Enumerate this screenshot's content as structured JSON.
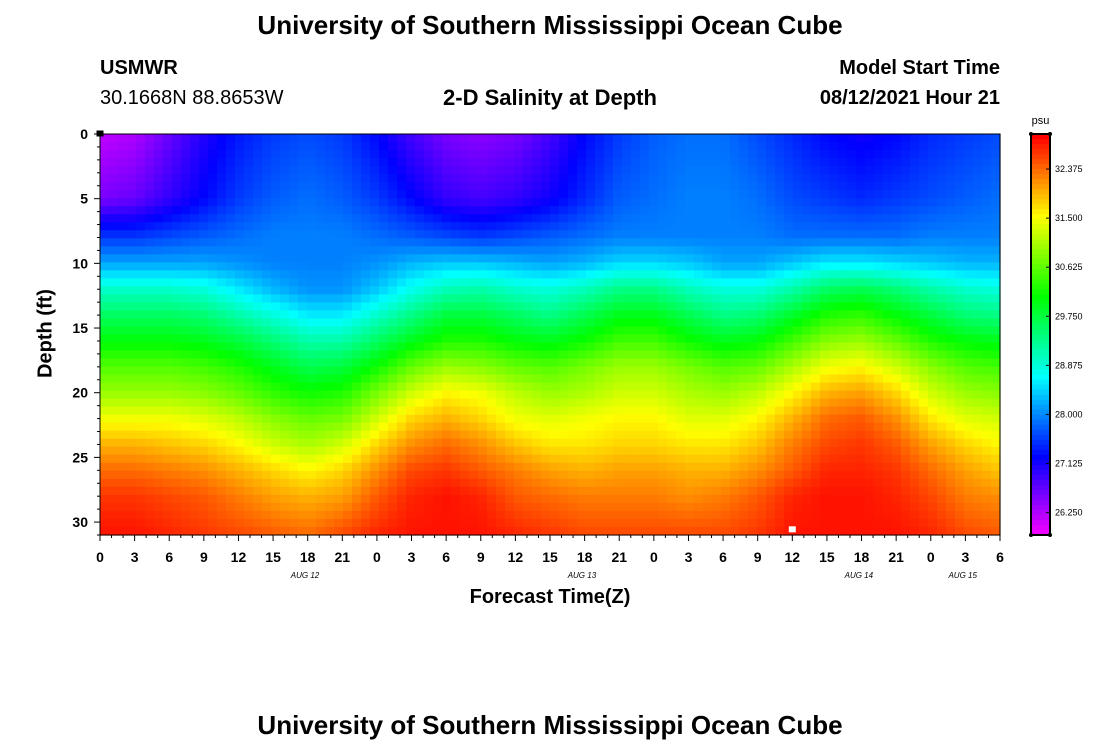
{
  "header": {
    "title_top": "University of Southern Mississippi Ocean Cube",
    "station": "USMWR",
    "coordinates": "30.1668N  88.8653W",
    "chart_title": "2-D Salinity at Depth",
    "model_start_label": "Model Start Time",
    "model_start_value": "08/12/2021 Hour 21"
  },
  "footer": {
    "title_bottom": "University of Southern Mississippi Ocean Cube"
  },
  "colors": {
    "background": "#ffffff",
    "scale": [
      "#ff00ff",
      "#8000ff",
      "#0000ff",
      "#0080ff",
      "#00ffff",
      "#00ff00",
      "#ffff00",
      "#ff8000",
      "#ff0000"
    ]
  },
  "chart_data": {
    "type": "heatmap",
    "title": "2-D Salinity at Depth",
    "xlabel": "Forecast Time(Z)",
    "ylabel": "Depth (ft)",
    "x_tick_labels": [
      "0",
      "3",
      "6",
      "9",
      "12",
      "15",
      "18",
      "21",
      "0",
      "3",
      "6",
      "9",
      "12",
      "15",
      "18",
      "21",
      "0",
      "3",
      "6",
      "9",
      "12",
      "15",
      "18",
      "21",
      "0",
      "3",
      "6"
    ],
    "x_date_labels": [
      "AUG 12",
      "AUG 13",
      "AUG 14",
      "AUG 15"
    ],
    "y_tick_labels": [
      "0",
      "5",
      "10",
      "15",
      "20",
      "25",
      "30"
    ],
    "xlim_hours": [
      0,
      78
    ],
    "ylim_ft": [
      0,
      31
    ],
    "y_inverted": true,
    "colorbar": {
      "unit": "psu",
      "range": [
        25.85,
        33.0
      ],
      "tick_labels": [
        "32.375",
        "31.500",
        "30.625",
        "29.750",
        "28.875",
        "28.000",
        "27.125",
        "26.250"
      ]
    },
    "salinity_psu": {
      "depth_ft": [
        0,
        5,
        8,
        10,
        12,
        14,
        16,
        18,
        20,
        22,
        24,
        26,
        28,
        31
      ],
      "hours": [
        0,
        3,
        6,
        9,
        12,
        15,
        18,
        21,
        24,
        27,
        30,
        33,
        36,
        39,
        42,
        45,
        48,
        51,
        54,
        57,
        60,
        63,
        66,
        69,
        72,
        75,
        78
      ],
      "values": [
        [
          26.2,
          26.3,
          26.7,
          27.1,
          27.4,
          27.6,
          27.7,
          27.6,
          27.3,
          26.9,
          26.6,
          26.5,
          26.6,
          26.9,
          27.3,
          27.6,
          27.8,
          27.9,
          27.9,
          27.7,
          27.5,
          27.3,
          27.2,
          27.3,
          27.5,
          27.6,
          27.7
        ],
        [
          26.6,
          26.7,
          27.0,
          27.3,
          27.6,
          27.8,
          27.9,
          27.8,
          27.6,
          27.3,
          27.0,
          26.9,
          27.0,
          27.2,
          27.5,
          27.8,
          27.9,
          28.0,
          28.0,
          27.9,
          27.7,
          27.6,
          27.5,
          27.6,
          27.7,
          27.8,
          27.9
        ],
        [
          27.6,
          27.6,
          27.7,
          27.8,
          27.9,
          28.0,
          28.0,
          28.0,
          27.9,
          27.8,
          27.7,
          27.6,
          27.7,
          27.8,
          27.9,
          28.0,
          28.0,
          28.0,
          28.0,
          28.0,
          27.9,
          27.9,
          27.9,
          27.9,
          28.0,
          28.0,
          28.0
        ],
        [
          28.2,
          28.2,
          28.2,
          28.2,
          28.1,
          28.0,
          28.0,
          28.0,
          28.1,
          28.3,
          28.4,
          28.4,
          28.3,
          28.2,
          28.3,
          28.5,
          28.5,
          28.4,
          28.2,
          28.2,
          28.4,
          28.6,
          28.6,
          28.5,
          28.4,
          28.3,
          28.3
        ],
        [
          29.0,
          29.0,
          29.0,
          28.9,
          28.6,
          28.3,
          28.1,
          28.1,
          28.4,
          28.8,
          29.1,
          29.2,
          29.0,
          28.9,
          29.1,
          29.4,
          29.4,
          29.1,
          28.9,
          28.9,
          29.2,
          29.6,
          29.7,
          29.5,
          29.2,
          29.0,
          28.9
        ],
        [
          29.6,
          29.6,
          29.6,
          29.5,
          29.2,
          28.9,
          28.6,
          28.6,
          29.0,
          29.4,
          29.8,
          29.8,
          29.6,
          29.4,
          29.7,
          30.0,
          30.0,
          29.7,
          29.4,
          29.5,
          29.9,
          30.3,
          30.4,
          30.1,
          29.8,
          29.5,
          29.4
        ],
        [
          30.1,
          30.1,
          30.1,
          30.0,
          29.8,
          29.5,
          29.2,
          29.2,
          29.6,
          30.0,
          30.3,
          30.3,
          30.1,
          30.0,
          30.2,
          30.5,
          30.5,
          30.2,
          30.0,
          30.1,
          30.5,
          30.9,
          31.0,
          30.7,
          30.3,
          30.1,
          30.0
        ],
        [
          30.6,
          30.6,
          30.6,
          30.5,
          30.3,
          30.0,
          29.7,
          29.8,
          30.2,
          30.7,
          31.0,
          30.9,
          30.7,
          30.6,
          30.8,
          31.0,
          31.0,
          30.8,
          30.6,
          30.7,
          31.1,
          31.5,
          31.6,
          31.3,
          30.9,
          30.6,
          30.5
        ],
        [
          31.0,
          31.0,
          31.0,
          30.9,
          30.7,
          30.4,
          30.2,
          30.3,
          30.8,
          31.3,
          31.6,
          31.5,
          31.2,
          31.0,
          31.1,
          31.3,
          31.3,
          31.1,
          31.0,
          31.2,
          31.6,
          32.0,
          32.1,
          31.8,
          31.3,
          31.0,
          30.9
        ],
        [
          31.5,
          31.5,
          31.5,
          31.4,
          31.2,
          30.9,
          30.7,
          30.8,
          31.3,
          31.8,
          32.0,
          31.8,
          31.5,
          31.4,
          31.5,
          31.6,
          31.6,
          31.4,
          31.4,
          31.6,
          32.0,
          32.4,
          32.5,
          32.2,
          31.7,
          31.4,
          31.3
        ],
        [
          32.0,
          32.0,
          31.9,
          31.8,
          31.6,
          31.3,
          31.1,
          31.3,
          31.8,
          32.2,
          32.4,
          32.2,
          31.9,
          31.7,
          31.7,
          31.8,
          31.8,
          31.7,
          31.7,
          31.9,
          32.3,
          32.6,
          32.7,
          32.5,
          32.1,
          31.8,
          31.6
        ],
        [
          32.4,
          32.4,
          32.3,
          32.2,
          32.0,
          31.8,
          31.6,
          31.8,
          32.2,
          32.6,
          32.7,
          32.5,
          32.3,
          32.1,
          32.0,
          32.1,
          32.1,
          32.0,
          32.0,
          32.2,
          32.5,
          32.8,
          32.8,
          32.7,
          32.4,
          32.1,
          31.9
        ],
        [
          32.7,
          32.7,
          32.6,
          32.5,
          32.3,
          32.1,
          32.0,
          32.1,
          32.5,
          32.8,
          32.9,
          32.8,
          32.5,
          32.4,
          32.3,
          32.3,
          32.3,
          32.2,
          32.3,
          32.5,
          32.8,
          32.9,
          32.9,
          32.8,
          32.6,
          32.3,
          32.2
        ],
        [
          32.9,
          32.9,
          32.8,
          32.7,
          32.6,
          32.5,
          32.4,
          32.6,
          32.8,
          32.9,
          32.9,
          32.9,
          32.8,
          32.7,
          32.6,
          32.6,
          32.6,
          32.6,
          32.6,
          32.7,
          32.9,
          32.9,
          32.9,
          32.9,
          32.8,
          32.6,
          32.5
        ]
      ]
    },
    "markers": [
      {
        "hour": 0,
        "depth_ft": 0,
        "color": "#000000"
      },
      {
        "hour": 60,
        "depth_ft": 30.6,
        "color": "#ffffff"
      }
    ]
  }
}
